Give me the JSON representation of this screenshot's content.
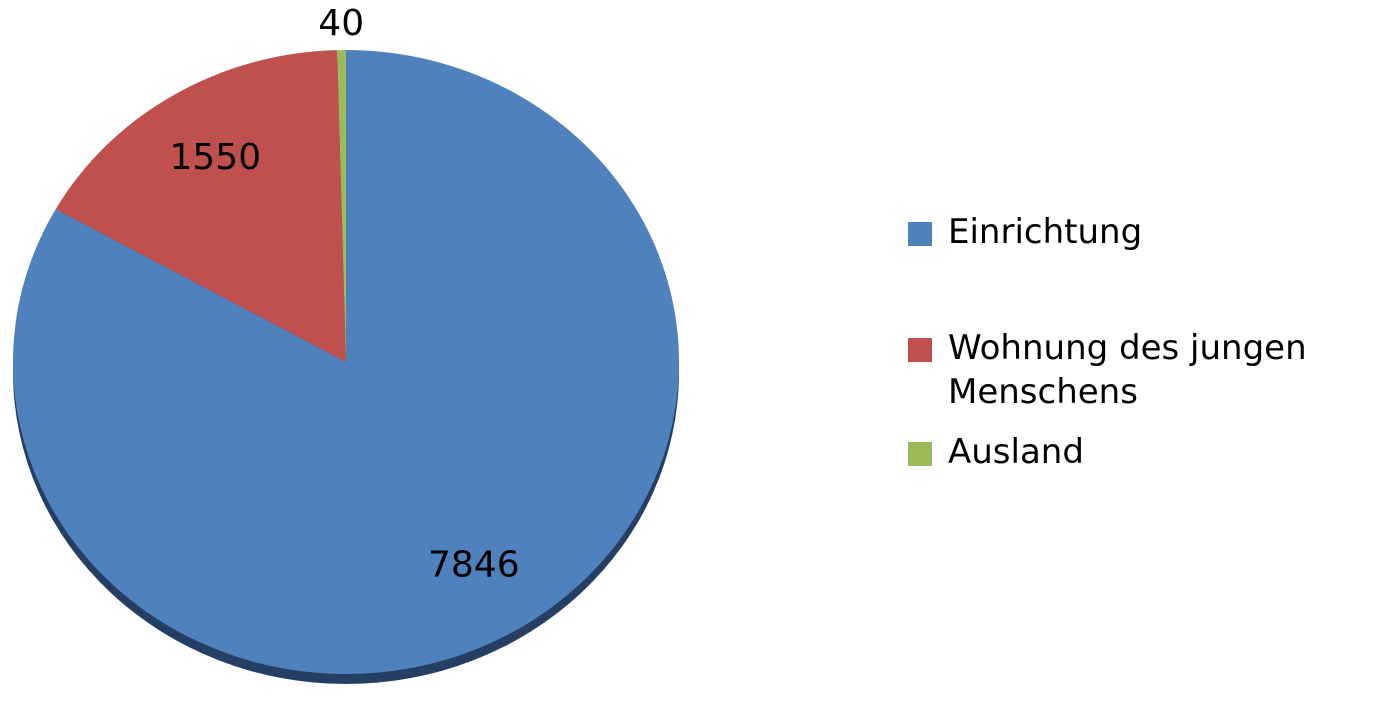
{
  "chart_data": {
    "type": "pie",
    "categories": [
      "Einrichtung",
      "Wohnung des jungen Menschens",
      "Ausland"
    ],
    "values": [
      7846,
      1550,
      40
    ],
    "colors": [
      "#4f81bd",
      "#c0504d",
      "#9bbb59"
    ],
    "legend": "right"
  }
}
